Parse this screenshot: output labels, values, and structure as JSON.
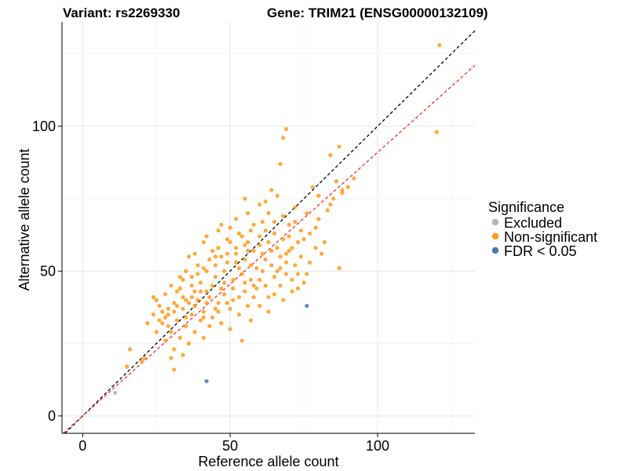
{
  "title_left": "Variant: rs2269330",
  "title_right": "Gene: TRIM21 (ENSG00000132109)",
  "legend": {
    "title": "Significance",
    "items": [
      {
        "label": "Excluded",
        "color": "#b5b5b5"
      },
      {
        "label": "Non-significant",
        "color": "#ff9a1a"
      },
      {
        "label": "FDR < 0.05",
        "color": "#4a7aa8"
      }
    ]
  },
  "chart_data": {
    "type": "scatter",
    "xlabel": "Reference allele count",
    "ylabel": "Alternative allele count",
    "xlim": [
      -7,
      133
    ],
    "ylim": [
      -6,
      136
    ],
    "xticks": [
      0,
      50,
      100
    ],
    "yticks": [
      0,
      50,
      100
    ],
    "grid": true,
    "legend_position": "right",
    "reference_lines": [
      {
        "slope": 1.0,
        "intercept": 0,
        "color": "#000000",
        "dash": "dashed"
      },
      {
        "slope": 0.91,
        "intercept": 0,
        "color": "#ff2a2a",
        "dash": "dashed"
      }
    ],
    "series": [
      {
        "name": "Excluded",
        "color": "#b5b5b5",
        "points": [
          [
            11,
            8
          ]
        ]
      },
      {
        "name": "Non-significant",
        "color": "#ff9a1a",
        "points": [
          [
            121,
            128
          ],
          [
            120,
            98
          ],
          [
            69,
            99
          ],
          [
            68,
            96
          ],
          [
            87,
            93
          ],
          [
            84,
            90
          ],
          [
            67,
            87
          ],
          [
            92,
            82
          ],
          [
            86,
            81
          ],
          [
            78,
            79
          ],
          [
            88,
            77
          ],
          [
            55,
            75
          ],
          [
            62,
            74
          ],
          [
            64,
            78
          ],
          [
            47,
            66
          ],
          [
            50,
            65
          ],
          [
            72,
            72
          ],
          [
            76,
            70
          ],
          [
            80,
            68
          ],
          [
            84,
            73
          ],
          [
            56,
            60
          ],
          [
            60,
            62
          ],
          [
            62,
            64
          ],
          [
            65,
            67
          ],
          [
            70,
            66
          ],
          [
            74,
            64
          ],
          [
            77,
            63
          ],
          [
            52,
            56
          ],
          [
            55,
            59
          ],
          [
            58,
            57
          ],
          [
            63,
            60
          ],
          [
            67,
            55
          ],
          [
            70,
            57
          ],
          [
            73,
            60
          ],
          [
            79,
            58
          ],
          [
            41,
            60
          ],
          [
            44,
            57
          ],
          [
            47,
            55
          ],
          [
            49,
            53
          ],
          [
            53,
            51
          ],
          [
            57,
            52
          ],
          [
            61,
            50
          ],
          [
            65,
            48
          ],
          [
            69,
            49
          ],
          [
            72,
            52
          ],
          [
            75,
            46
          ],
          [
            73,
            44
          ],
          [
            87,
            51
          ],
          [
            36,
            55
          ],
          [
            39,
            52
          ],
          [
            42,
            50
          ],
          [
            45,
            48
          ],
          [
            48,
            46
          ],
          [
            51,
            44
          ],
          [
            55,
            43
          ],
          [
            58,
            41
          ],
          [
            62,
            45
          ],
          [
            65,
            42
          ],
          [
            68,
            40
          ],
          [
            71,
            47
          ],
          [
            34,
            47
          ],
          [
            37,
            45
          ],
          [
            40,
            43
          ],
          [
            43,
            41
          ],
          [
            46,
            39
          ],
          [
            50,
            37
          ],
          [
            53,
            35
          ],
          [
            57,
            33
          ],
          [
            60,
            38
          ],
          [
            63,
            36
          ],
          [
            32,
            43
          ],
          [
            35,
            40
          ],
          [
            38,
            38
          ],
          [
            41,
            36
          ],
          [
            44,
            34
          ],
          [
            47,
            32
          ],
          [
            50,
            30
          ],
          [
            54,
            26
          ],
          [
            28,
            42
          ],
          [
            31,
            39
          ],
          [
            34,
            37
          ],
          [
            37,
            35
          ],
          [
            40,
            33
          ],
          [
            43,
            31
          ],
          [
            26,
            38
          ],
          [
            29,
            35
          ],
          [
            32,
            33
          ],
          [
            35,
            31
          ],
          [
            38,
            29
          ],
          [
            41,
            27
          ],
          [
            24,
            35
          ],
          [
            27,
            32
          ],
          [
            30,
            29
          ],
          [
            33,
            27
          ],
          [
            36,
            25
          ],
          [
            22,
            32
          ],
          [
            25,
            29
          ],
          [
            28,
            26
          ],
          [
            31,
            23
          ],
          [
            34,
            21
          ],
          [
            30,
            20
          ],
          [
            31,
            16
          ],
          [
            16,
            23
          ],
          [
            21,
            20
          ],
          [
            20,
            19
          ],
          [
            15,
            17
          ],
          [
            24,
            41
          ],
          [
            30,
            45
          ],
          [
            33,
            48
          ],
          [
            38,
            56
          ],
          [
            42,
            62
          ],
          [
            46,
            64
          ],
          [
            52,
            68
          ],
          [
            56,
            70
          ],
          [
            60,
            73
          ],
          [
            66,
            76
          ],
          [
            58,
            66
          ],
          [
            63,
            70
          ],
          [
            68,
            69
          ],
          [
            49,
            61
          ],
          [
            53,
            63
          ],
          [
            45,
            52
          ],
          [
            57,
            47
          ],
          [
            61,
            56
          ],
          [
            66,
            58
          ],
          [
            70,
            62
          ],
          [
            74,
            55
          ],
          [
            77,
            53
          ],
          [
            81,
            56
          ],
          [
            54,
            49
          ],
          [
            48,
            42
          ],
          [
            44,
            45
          ],
          [
            39,
            49
          ],
          [
            35,
            50
          ],
          [
            42,
            39
          ],
          [
            46,
            36
          ],
          [
            51,
            40
          ],
          [
            56,
            38
          ],
          [
            59,
            44
          ],
          [
            64,
            52
          ],
          [
            67,
            45
          ],
          [
            69,
            53
          ],
          [
            71,
            43
          ],
          [
            76,
            49
          ],
          [
            37,
            41
          ],
          [
            33,
            44
          ],
          [
            29,
            37
          ],
          [
            27,
            36
          ],
          [
            25,
            40
          ],
          [
            40,
            46
          ],
          [
            52,
            58
          ],
          [
            55,
            54
          ],
          [
            59,
            51
          ],
          [
            62,
            54
          ],
          [
            48,
            50
          ],
          [
            43,
            54
          ],
          [
            38,
            43
          ],
          [
            46,
            58
          ],
          [
            50,
            60
          ],
          [
            54,
            62
          ],
          [
            57,
            64
          ],
          [
            61,
            67
          ],
          [
            65,
            63
          ],
          [
            68,
            61
          ],
          [
            72,
            67
          ],
          [
            75,
            61
          ],
          [
            79,
            65
          ],
          [
            82,
            60
          ],
          [
            85,
            75
          ],
          [
            88,
            78
          ],
          [
            90,
            79
          ],
          [
            80,
            76
          ],
          [
            83,
            71
          ],
          [
            71,
            58
          ],
          [
            66,
            50
          ],
          [
            60,
            47
          ],
          [
            55,
            46
          ],
          [
            51,
            47
          ],
          [
            47,
            44
          ],
          [
            42,
            43
          ],
          [
            39,
            40
          ],
          [
            36,
            39
          ],
          [
            32,
            38
          ],
          [
            29,
            31
          ],
          [
            26,
            33
          ],
          [
            35,
            34
          ],
          [
            41,
            34
          ],
          [
            45,
            37
          ],
          [
            49,
            39
          ],
          [
            53,
            41
          ],
          [
            58,
            45
          ],
          [
            63,
            41
          ],
          [
            67,
            51
          ],
          [
            69,
            56
          ],
          [
            73,
            49
          ],
          [
            64,
            57
          ],
          [
            60,
            59
          ],
          [
            56,
            57
          ],
          [
            52,
            53
          ],
          [
            49,
            56
          ],
          [
            45,
            55
          ],
          [
            41,
            51
          ],
          [
            37,
            48
          ],
          [
            34,
            41
          ],
          [
            31,
            36
          ],
          [
            28,
            34
          ]
        ]
      },
      {
        "name": "FDR < 0.05",
        "color": "#4a7aa8",
        "points": [
          [
            76,
            38
          ],
          [
            42,
            12
          ]
        ]
      }
    ]
  }
}
